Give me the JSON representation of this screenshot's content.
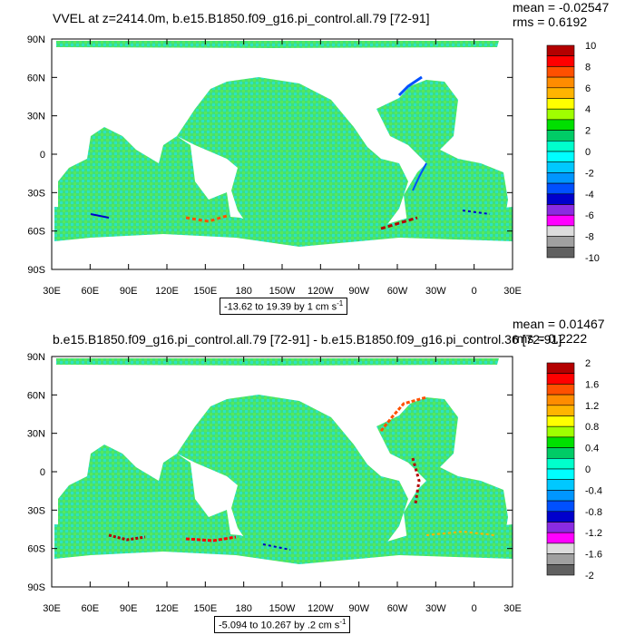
{
  "chart_data": [
    {
      "type": "heatmap",
      "title": "VVEL at z=2414.0m, b.e15.B1850.f09_g16.pi_control.all.79 [72-91]",
      "stats": {
        "mean": "mean = -0.02547",
        "rms": "rms = 0.6192"
      },
      "x_ticks": [
        "30E",
        "60E",
        "90E",
        "120E",
        "150E",
        "180",
        "150W",
        "120W",
        "90W",
        "60W",
        "30W",
        "0",
        "30E"
      ],
      "y_ticks": [
        "90N",
        "60N",
        "30N",
        "0",
        "30S",
        "60S",
        "90S"
      ],
      "xlim": [
        30,
        390
      ],
      "ylim": [
        -90,
        90
      ],
      "range_label": {
        "text": "-13.62 to 19.39 by 1 cm s",
        "unit_exp": "-1"
      },
      "colorbar": {
        "labels": [
          "10",
          "8",
          "6",
          "4",
          "2",
          "0",
          "-2",
          "-4",
          "-6",
          "-8",
          "-10"
        ],
        "colors": [
          "#b40000",
          "#ff0000",
          "#ff5000",
          "#ff8c00",
          "#ffb400",
          "#ffff00",
          "#a0ff00",
          "#00e000",
          "#00cc66",
          "#00ffcc",
          "#00ffff",
          "#00c8ff",
          "#0096ff",
          "#0050ff",
          "#0000cc",
          "#8a2be2",
          "#ff00ff",
          "#dcdcdc",
          "#a0a0a0",
          "#606060"
        ]
      }
    },
    {
      "type": "heatmap",
      "title": "b.e15.B1850.f09_g16.pi_control.all.79 [72-91] - b.e15.B1850.f09_g16.pi_control.36 [72-91]",
      "stats": {
        "mean": "mean = 0.01467",
        "rms": "rms = 0.2222"
      },
      "x_ticks": [
        "30E",
        "60E",
        "90E",
        "120E",
        "150E",
        "180",
        "150W",
        "120W",
        "90W",
        "60W",
        "30W",
        "0",
        "30E"
      ],
      "y_ticks": [
        "90N",
        "60N",
        "30N",
        "0",
        "30S",
        "60S",
        "90S"
      ],
      "xlim": [
        30,
        390
      ],
      "ylim": [
        -90,
        90
      ],
      "range_label": {
        "text": "-5.094 to 10.267 by .2 cm s",
        "unit_exp": "-1"
      },
      "colorbar": {
        "labels": [
          "2",
          "1.6",
          "1.2",
          "0.8",
          "0.4",
          "0",
          "-0.4",
          "-0.8",
          "-1.2",
          "-1.6",
          "-2"
        ],
        "colors": [
          "#b40000",
          "#ff0000",
          "#ff5000",
          "#ff8c00",
          "#ffb400",
          "#ffff00",
          "#a0ff00",
          "#00e000",
          "#00cc66",
          "#00ffcc",
          "#00ffff",
          "#00c8ff",
          "#0096ff",
          "#0050ff",
          "#0000cc",
          "#8a2be2",
          "#ff00ff",
          "#dcdcdc",
          "#a0a0a0",
          "#606060"
        ]
      }
    }
  ]
}
